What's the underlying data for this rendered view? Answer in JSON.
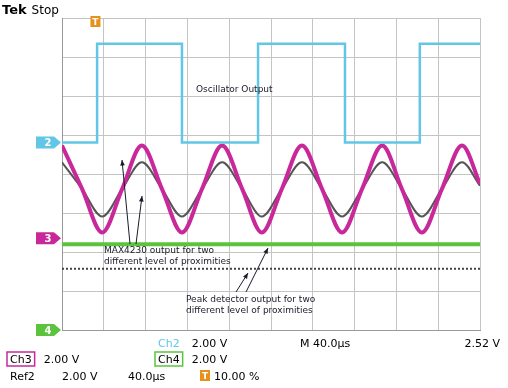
{
  "chart_data": {
    "type": "line",
    "header": {
      "brand": "Tek",
      "state": "Stop"
    },
    "xlim": [
      0,
      10
    ],
    "xticks": [
      0,
      1,
      2,
      3,
      4,
      5,
      6,
      7,
      8,
      9,
      10
    ],
    "ylim": [
      0,
      8
    ],
    "yticks": [
      0,
      1,
      2,
      3,
      4,
      5,
      6,
      7,
      8
    ],
    "grid": true,
    "tick_labels": false,
    "series": [
      {
        "color": "#62c6e6",
        "line_style": "solid",
        "x": [
          0,
          0.84,
          0.84,
          2.87,
          2.87,
          4.69,
          4.69,
          6.77,
          6.77,
          8.56,
          8.56,
          10
        ],
        "values": [
          4.81,
          4.81,
          7.34,
          7.34,
          4.81,
          4.81,
          7.34,
          7.34,
          4.81,
          4.81,
          7.34,
          7.34
        ]
      },
      {
        "color": "#c8289a",
        "line_style": "smooth",
        "x": [
          0,
          0.48,
          0.96,
          1.44,
          1.91,
          2.39,
          2.87,
          3.35,
          3.83,
          4.31,
          4.78,
          5.26,
          5.74,
          6.22,
          6.7,
          7.18,
          7.66,
          8.13,
          8.61,
          9.09,
          9.57,
          10
        ],
        "values": [
          4.73,
          3.62,
          2.5,
          3.62,
          4.73,
          3.62,
          2.5,
          3.62,
          4.73,
          3.62,
          2.5,
          3.62,
          4.73,
          3.62,
          2.5,
          3.62,
          4.73,
          3.62,
          2.5,
          3.62,
          4.73,
          3.75
        ]
      },
      {
        "color": "#555555",
        "line_style": "smooth",
        "x": [
          0,
          0.48,
          0.96,
          1.44,
          1.91,
          2.39,
          2.87,
          3.35,
          3.83,
          4.31,
          4.78,
          5.26,
          5.74,
          6.22,
          6.7,
          7.18,
          7.66,
          8.13,
          8.61,
          9.09,
          9.57,
          10
        ],
        "values": [
          4.3,
          3.62,
          2.91,
          3.62,
          4.3,
          3.62,
          2.91,
          3.62,
          4.3,
          3.62,
          2.91,
          3.62,
          4.3,
          3.62,
          2.91,
          3.62,
          4.3,
          3.62,
          2.91,
          3.62,
          4.3,
          3.7
        ]
      },
      {
        "color": "#5cc43c",
        "line_style": "solid",
        "x": [
          0,
          10
        ],
        "values": [
          2.2,
          2.2
        ]
      },
      {
        "color": "#444444",
        "line_style": "dotted",
        "x": [
          0,
          10
        ],
        "values": [
          1.57,
          1.57
        ]
      }
    ],
    "annotations": [
      {
        "lines": [
          "Oscillator Output"
        ]
      },
      {
        "lines": [
          "MAX4230 output for two",
          "different level of proximities"
        ]
      },
      {
        "lines": [
          "Peak detector output for two",
          "different level of proximities"
        ]
      }
    ],
    "channel_markers": [
      {
        "label": "2",
        "y": 4.81,
        "color": "#62c6e6"
      },
      {
        "label": "3",
        "y": 2.35,
        "color": "#c8289a"
      },
      {
        "label": "4",
        "y": 0,
        "color": "#5cc43c"
      }
    ],
    "trigger_marker": "T",
    "readout": {
      "channels": [
        {
          "label": "Ch2",
          "value": "2.00 V",
          "color": "#62c6e6"
        },
        {
          "label": "Ch3",
          "value": "2.00 V",
          "color": "#c8289a"
        },
        {
          "label": "Ch4",
          "value": "2.00 V",
          "color": "#5cc43c"
        }
      ],
      "reference": {
        "label": "Ref2",
        "value": "2.00 V",
        "timebase": "40.0µs"
      },
      "timebase": "M 40.0µs",
      "trigger_level": "2.52 V",
      "trigger_position": "10.00 %"
    }
  }
}
